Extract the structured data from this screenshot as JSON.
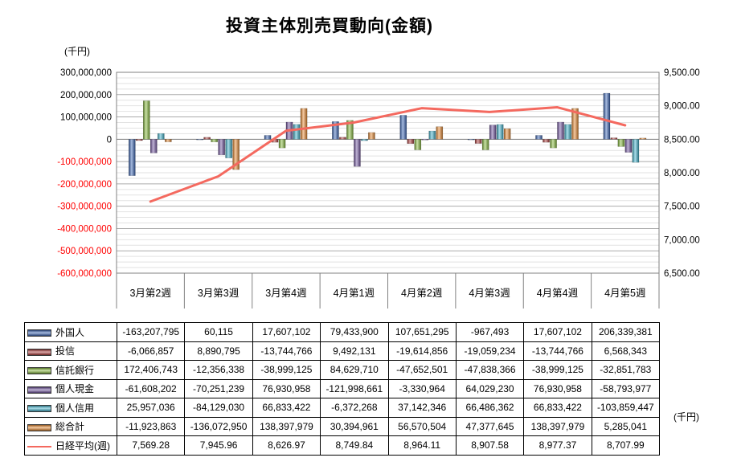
{
  "title": "投資主体別売買動向(金額)",
  "left_axis": {
    "unit": "(千円)",
    "tick_labels": [
      "300,000,000",
      "200,000,000",
      "100,000,000",
      "0",
      "-100,000,000",
      "-200,000,000",
      "-300,000,000",
      "-400,000,000",
      "-500,000,000",
      "-600,000,000"
    ],
    "negative_color": "#ff0000"
  },
  "right_axis": {
    "unit": "(千円)",
    "tick_labels": [
      "9,500.00",
      "9,000.00",
      "8,500.00",
      "8,000.00",
      "7,500.00",
      "7,000.00",
      "6,500.00"
    ]
  },
  "chart_data": {
    "type": "bar",
    "subtype": "bar-line-combo",
    "title": "投資主体別売買動向(金額)",
    "categories": [
      "3月第2週",
      "3月第3週",
      "3月第4週",
      "4月第1週",
      "4月第2週",
      "4月第3週",
      "4月第4週",
      "4月第5週"
    ],
    "left_ylim": [
      -600000000,
      300000000
    ],
    "right_ylim": [
      6500,
      9500
    ],
    "grid": {
      "major_step": 100000000,
      "minor_step": 25000000
    },
    "bar_series": [
      {
        "name": "外国人",
        "color": "#3a66b8",
        "values": [
          -163207795,
          60115,
          17607102,
          79433900,
          107651295,
          -967493,
          17607102,
          206339381
        ]
      },
      {
        "name": "投信",
        "color": "#b03a39",
        "values": [
          -6066857,
          8890795,
          -13744766,
          9492131,
          -19614856,
          -19059234,
          -13744766,
          6568343
        ]
      },
      {
        "name": "信託銀行",
        "color": "#86bc3a",
        "values": [
          172406743,
          -12356338,
          -38999125,
          84629710,
          -47652501,
          -47838366,
          -38999125,
          -32851783
        ]
      },
      {
        "name": "個人現金",
        "color": "#7456a3",
        "values": [
          -61608202,
          -70251239,
          76930958,
          -121998661,
          -3330964,
          64029230,
          76930958,
          -58793977
        ]
      },
      {
        "name": "個人信用",
        "color": "#3fb4ce",
        "values": [
          25957036,
          -84129030,
          66833422,
          -6372268,
          37142346,
          66486362,
          66833422,
          -103859447
        ]
      },
      {
        "name": "総合計",
        "color": "#ec8a2f",
        "values": [
          -11923863,
          -136072950,
          138397979,
          30394961,
          56570504,
          47377645,
          138397979,
          5285041
        ]
      }
    ],
    "line_series": {
      "name": "日経平均(週)",
      "color": "#f4695f",
      "values": [
        7569.28,
        7945.96,
        8626.97,
        8749.84,
        8964.11,
        8907.58,
        8977.37,
        8707.99
      ]
    },
    "legend_position": "table-left"
  }
}
